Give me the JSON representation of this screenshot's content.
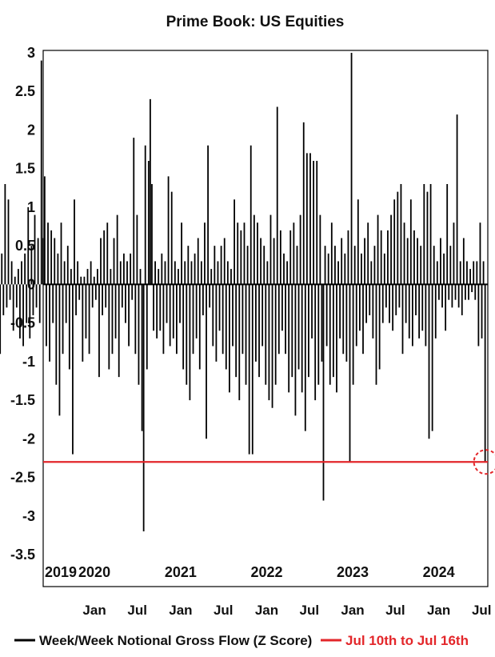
{
  "chart_data": {
    "type": "bar",
    "title": "Prime Book: US Equities",
    "ylim": [
      -3.5,
      3
    ],
    "yticks": [
      "3",
      "2.5",
      "2",
      "1.5",
      "1",
      "0.5",
      "0",
      "-0.5",
      "-1",
      "-1.5",
      "-2",
      "-2.5",
      "-3",
      "-3.5"
    ],
    "year_labels": [
      "2019",
      "2020",
      "2021",
      "2022",
      "2023",
      "2024"
    ],
    "month_labels": [
      "Jan",
      "Jul",
      "Jan",
      "Jul",
      "Jan",
      "Jul",
      "Jan",
      "Jul",
      "Jan",
      "Jul",
      "Jan",
      "Jul"
    ],
    "x_start": "2019-06-01",
    "x_end": "2024-07-24",
    "series": [
      {
        "name": "Week/Week Notional Gross Flow (Z Score)",
        "color": "#000000",
        "frequency": "weekly",
        "values": [
          0.1,
          0.0,
          0.2,
          -1.0,
          0.5,
          -0.2,
          0.3,
          -0.3,
          0.2,
          -0.5,
          0.1,
          -0.4,
          0.3,
          -0.2,
          0.2,
          -0.8,
          0.1,
          -0.9,
          0.4,
          -0.4,
          1.3,
          -0.3,
          1.1,
          -0.2,
          0.3,
          -0.6,
          0.1,
          -0.3,
          0.2,
          -0.7,
          0.3,
          -0.8,
          0.4,
          -0.5,
          1.0,
          -0.7,
          0.5,
          -0.4,
          0.9,
          -0.3,
          0.6,
          -0.5,
          2.9,
          0.6,
          1.4,
          -0.8,
          0.8,
          -1.0,
          0.7,
          -0.5,
          0.6,
          -1.3,
          0.4,
          -1.7,
          0.8,
          -0.9,
          0.3,
          -0.5,
          0.5,
          -1.1,
          0.2,
          -2.2,
          1.1,
          -0.4,
          0.3,
          -0.2,
          0.1,
          -1.0,
          0.1,
          -0.7,
          0.2,
          -0.9,
          0.3,
          -0.3,
          0.1,
          -0.2,
          0.2,
          -1.2,
          0.6,
          -0.4,
          0.7,
          -0.3,
          0.8,
          -1.1,
          0.2,
          -0.9,
          0.6,
          -0.7,
          0.9,
          -1.2,
          0.3,
          -0.3,
          0.4,
          -0.5,
          0.3,
          -0.8,
          0.4,
          -0.2,
          1.9,
          -0.9,
          0.9,
          -1.3,
          0.2,
          -1.9,
          -3.2,
          1.8,
          -1.1,
          1.6,
          2.4,
          1.3,
          -0.6,
          0.3,
          -0.7,
          0.2,
          -0.6,
          0.4,
          -0.9,
          0.3,
          -0.5,
          1.4,
          -0.8,
          1.2,
          -0.7,
          0.3,
          -0.9,
          0.2,
          -0.5,
          0.8,
          -1.1,
          0.3,
          -1.3,
          0.5,
          -1.5,
          0.3,
          -0.9,
          0.4,
          -0.7,
          0.6,
          -1.1,
          0.3,
          -0.4,
          0.8,
          -2.0,
          1.8,
          -0.3,
          0.2,
          -0.8,
          0.5,
          -1.0,
          0.3,
          -0.6,
          0.5,
          -0.9,
          0.6,
          -1.1,
          0.3,
          -1.4,
          0.2,
          -0.8,
          1.1,
          -1.2,
          0.8,
          -1.5,
          0.7,
          -0.9,
          0.8,
          -1.3,
          0.5,
          -2.2,
          1.8,
          -2.2,
          0.9,
          -1.0,
          0.8,
          -1.2,
          0.6,
          -0.8,
          0.5,
          -1.3,
          0.3,
          -1.5,
          0.9,
          -1.6,
          0.6,
          -1.3,
          2.3,
          -0.9,
          0.7,
          -0.6,
          0.4,
          -0.9,
          0.3,
          -1.4,
          0.7,
          -1.2,
          0.8,
          -1.7,
          0.5,
          -1.1,
          0.9,
          -1.4,
          2.1,
          -1.9,
          1.7,
          -1.2,
          1.7,
          -0.7,
          1.6,
          -1.5,
          1.6,
          -1.3,
          0.9,
          -1.0,
          -2.8,
          0.5,
          -0.8,
          0.4,
          -1.3,
          0.8,
          -1.2,
          0.5,
          -1.4,
          0.3,
          -0.7,
          0.6,
          -0.9,
          0.4,
          -1.0,
          0.7,
          -2.3,
          3.0,
          -1.3,
          0.5,
          -0.8,
          1.1,
          -0.6,
          0.4,
          -0.9,
          0.6,
          -0.5,
          0.8,
          -0.4,
          0.3,
          -0.7,
          0.5,
          -1.3,
          0.9,
          -1.1,
          0.7,
          -0.5,
          0.4,
          -0.3,
          0.7,
          -0.5,
          0.9,
          -0.6,
          1.1,
          -0.4,
          1.2,
          -0.3,
          1.3,
          -0.9,
          0.8,
          -0.5,
          0.6,
          -0.7,
          1.1,
          -0.8,
          0.7,
          -0.4,
          0.6,
          -0.7,
          0.5,
          -0.6,
          1.3,
          -0.8,
          1.2,
          -2.0,
          1.3,
          -1.9,
          0.5,
          -0.7,
          0.3,
          -0.2,
          0.6,
          -0.3,
          0.4,
          -0.6,
          1.3,
          -0.2,
          0.5,
          -0.3,
          0.8,
          -0.2,
          2.2,
          -0.3,
          0.3,
          -0.4,
          0.6,
          -0.2,
          0.3,
          -0.2,
          0.2,
          -0.1,
          0.3,
          -0.2,
          0.3,
          -0.8,
          0.8,
          -0.7,
          0.3,
          -2.3
        ]
      },
      {
        "name": "Jul 10th to Jul 16th",
        "color": "#e3262a",
        "type": "hline",
        "value": -2.3
      }
    ],
    "annotation": "dashed red circle marks latest reading",
    "legend_position": "bottom",
    "grid": false
  }
}
